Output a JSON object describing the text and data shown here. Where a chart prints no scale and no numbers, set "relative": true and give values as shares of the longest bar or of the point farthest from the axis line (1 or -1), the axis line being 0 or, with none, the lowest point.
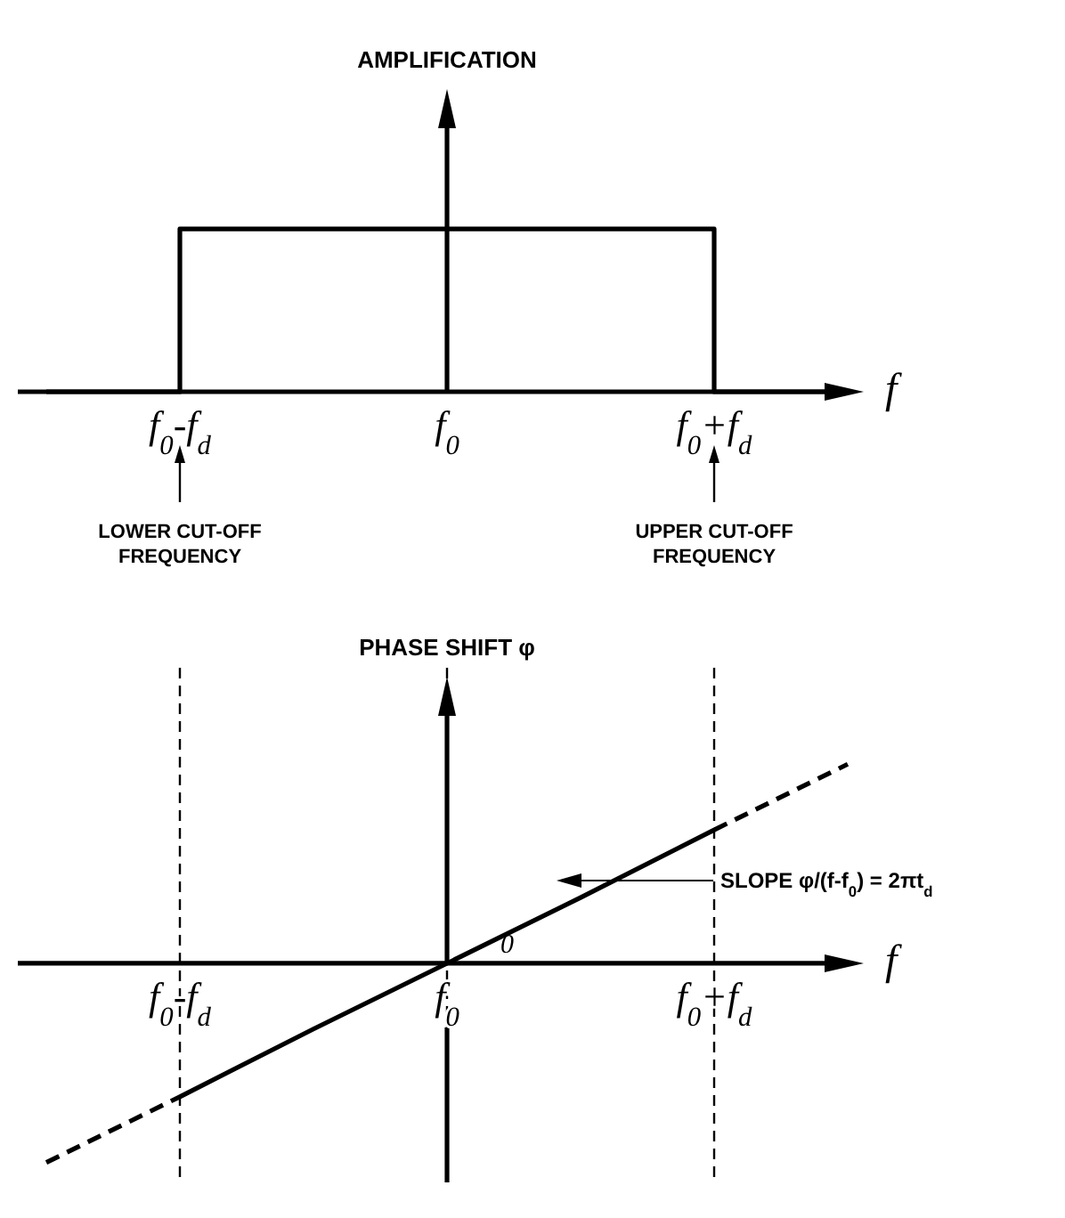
{
  "chart_data": [
    {
      "type": "step",
      "relative": true,
      "ylabel": "AMPLIFICATION",
      "xlabel": "f",
      "categories": [
        null,
        "f$_{0}$-f$_{d}$",
        null,
        "f$_{0}$",
        null,
        "f$_{0}$+f$_{d}$",
        null
      ],
      "series": [
        {
          "color": "#000000",
          "values": [
            0,
            1,
            1,
            1,
            1,
            0,
            0
          ],
          "line_style": "solid"
        }
      ],
      "annotations": [
        "LOWER CUT-OFF FREQUENCY",
        "UPPER CUT-OFF FREQUENCY"
      ]
    },
    {
      "type": "line",
      "relative": true,
      "ylabel": "PHASE SHIFT φ",
      "xlabel": "f",
      "categories": [
        null,
        "f$_{0}$-f$_{d}$",
        null,
        "f$_{0}$",
        null,
        "f$_{0}$+f$_{d}$",
        null
      ],
      "series": [
        {
          "color": "#000000",
          "values": [
            null,
            -0.67,
            -0.33,
            0,
            0.33,
            0.67,
            null
          ],
          "line_style": "solid"
        },
        {
          "color": "#000000",
          "values": [
            -1,
            -0.67,
            null,
            null,
            null,
            0.67,
            1
          ],
          "line_style": "dashed"
        }
      ],
      "grid": "x",
      "annotations": [
        "0",
        "SLOPE φ/(f-f$_{0}$) = 2πt$_{d}$"
      ]
    }
  ]
}
